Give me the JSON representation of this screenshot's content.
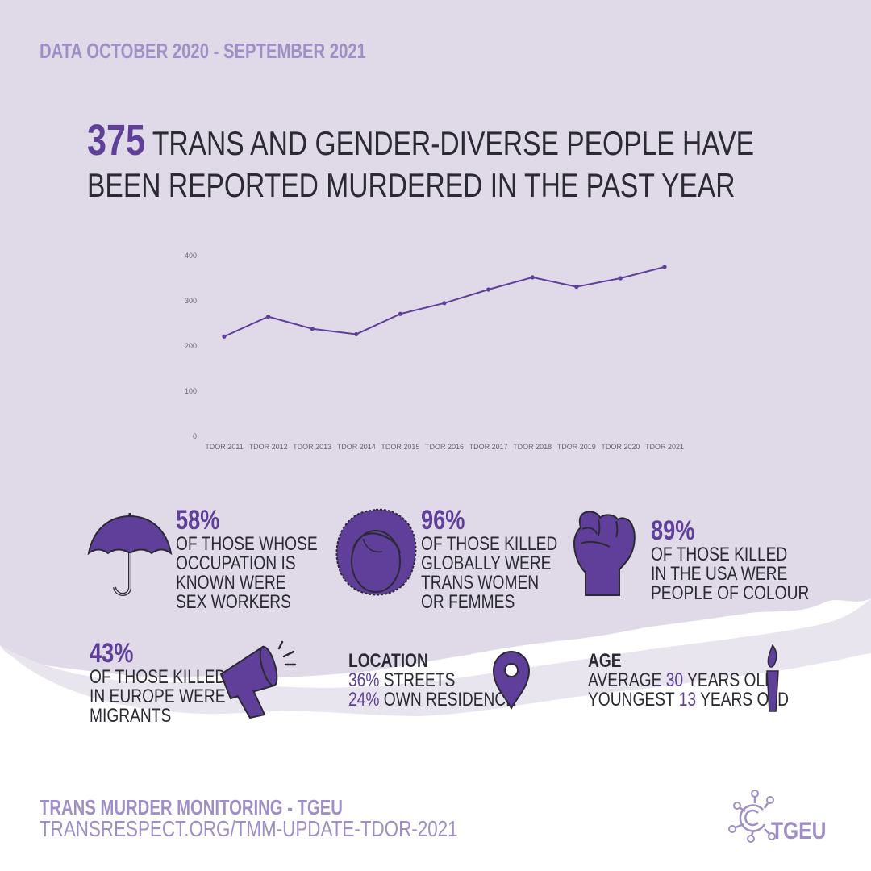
{
  "header": {
    "date_range": "DATA OCTOBER 2020 - SEPTEMBER 2021"
  },
  "headline": {
    "number": "375",
    "line1": " TRANS AND GENDER-DIVERSE PEOPLE HAVE",
    "line2": "BEEN REPORTED MURDERED IN THE PAST YEAR"
  },
  "chart_data": {
    "type": "line",
    "categories": [
      "TDOR 2011",
      "TDOR 2012",
      "TDOR 2013",
      "TDOR 2014",
      "TDOR 2015",
      "TDOR 2016",
      "TDOR 2017",
      "TDOR 2018",
      "TDOR 2019",
      "TDOR 2020",
      "TDOR 2021"
    ],
    "values": [
      221,
      265,
      238,
      226,
      271,
      295,
      325,
      352,
      331,
      350,
      375
    ],
    "yticks": [
      0,
      100,
      200,
      300,
      400
    ],
    "ylim": [
      0,
      400
    ],
    "grid": false,
    "line_color": "#5f3f99"
  },
  "stats": {
    "sex_workers": {
      "pct": "58%",
      "lines": [
        "OF THOSE WHOSE",
        "OCCUPATION IS",
        "KNOWN WERE",
        "SEX WORKERS"
      ],
      "icon": "umbrella-icon"
    },
    "trans_women": {
      "pct": "96%",
      "lines": [
        "OF THOSE KILLED",
        "GLOBALLY WERE",
        "TRANS WOMEN",
        "OR FEMMES"
      ],
      "icon": "face-icon"
    },
    "people_of_colour": {
      "pct": "89%",
      "lines": [
        "OF THOSE KILLED",
        "IN THE USA WERE",
        "PEOPLE OF COLOUR"
      ],
      "icon": "raised-fist-icon"
    },
    "migrants": {
      "pct": "43%",
      "lines": [
        "OF THOSE KILLED",
        "IN EUROPE WERE",
        "MIGRANTS"
      ],
      "icon": "megaphone-icon"
    },
    "location": {
      "label": "LOCATION",
      "row1_value": "36%",
      "row1_text": " STREETS",
      "row2_value": "24%",
      "row2_text": " OWN RESIDENCE",
      "icon": "map-pin-icon"
    },
    "age": {
      "label": "AGE",
      "row1_prefix": "AVERAGE ",
      "row1_value": "30",
      "row1_suffix": " YEARS OLD",
      "row2_prefix": "YOUNGEST ",
      "row2_value": "13",
      "row2_suffix": " YEARS OLD",
      "icon": "candle-icon"
    }
  },
  "footer": {
    "title": "TRANS MURDER MONITORING - TGEU",
    "url": "TRANSRESPECT.ORG/TMM-UPDATE-TDOR-2021",
    "logo_text": "TGEU"
  },
  "colors": {
    "background": "#e0dae8",
    "accent": "#5f3f99",
    "muted": "#9f8fc6",
    "text": "#2b2a33"
  }
}
